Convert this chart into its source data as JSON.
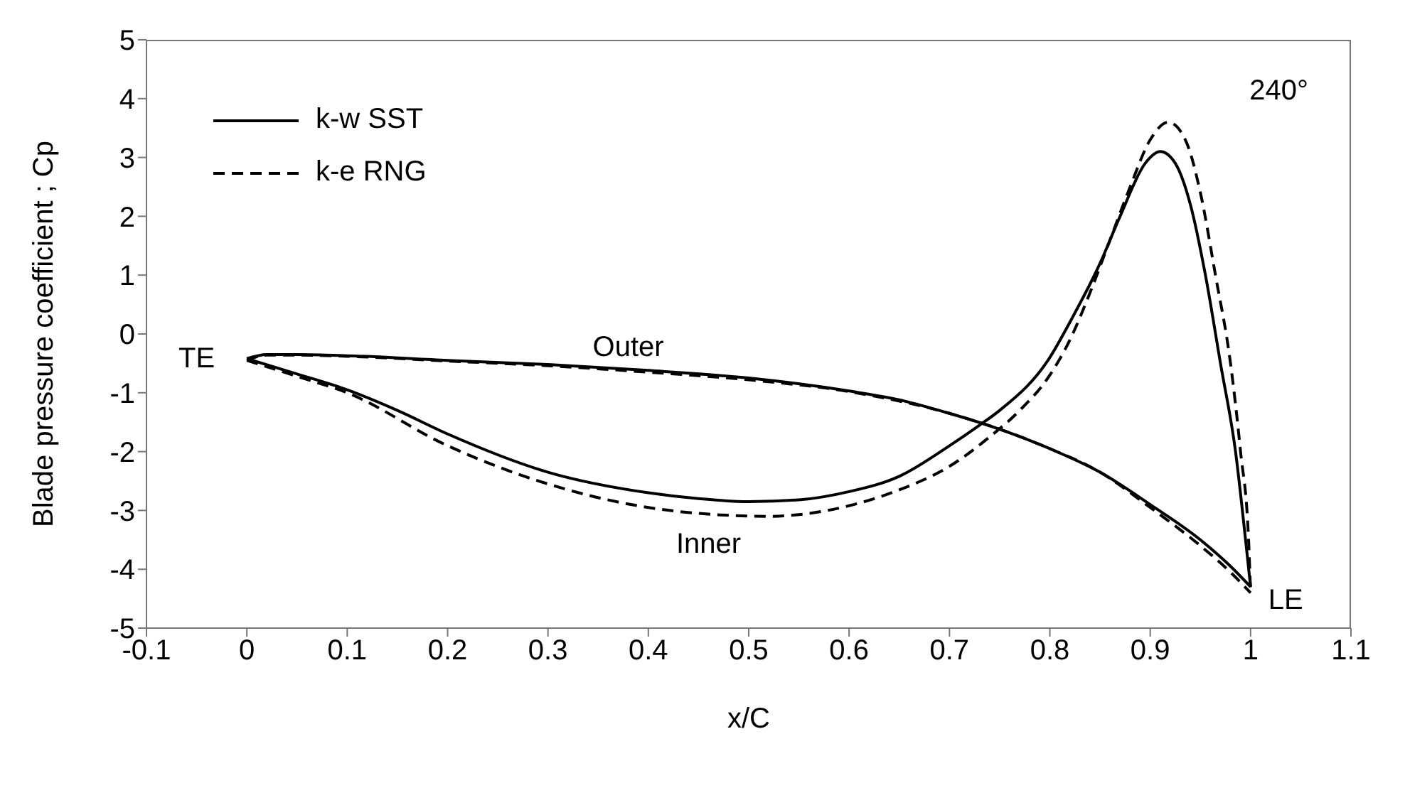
{
  "chart_data": {
    "type": "line",
    "xlabel": "x/C",
    "ylabel": "Blade pressure coefficient ; Cp",
    "xlim": [
      -0.1,
      1.1
    ],
    "ylim": [
      -5,
      5
    ],
    "xticks": [
      -0.1,
      0,
      0.1,
      0.2,
      0.3,
      0.4,
      0.5,
      0.6,
      0.7,
      0.8,
      0.9,
      1,
      1.1
    ],
    "yticks": [
      -5,
      -4,
      -3,
      -2,
      -1,
      0,
      1,
      2,
      3,
      4,
      5
    ],
    "legend": "top left",
    "annotations": [
      "240°",
      "TE",
      "LE",
      "Outer",
      "Inner"
    ],
    "series": [
      {
        "name": "k-w SST",
        "color": "#000000",
        "line_style": "solid",
        "x": [
          0,
          0.02,
          0.05,
          0.1,
          0.2,
          0.3,
          0.4,
          0.5,
          0.6,
          0.65,
          0.7,
          0.75,
          0.8,
          0.85,
          0.9,
          0.95,
          0.98,
          1.0
        ],
        "values": [
          -0.42,
          -0.35,
          -0.35,
          -0.37,
          -0.45,
          -0.52,
          -0.62,
          -0.75,
          -0.97,
          -1.12,
          -1.35,
          -1.62,
          -1.95,
          -2.35,
          -2.9,
          -3.5,
          -3.95,
          -4.3
        ]
      },
      {
        "name": "k-e RNG",
        "color": "#000000",
        "line_style": "dashed",
        "x": [
          0,
          0.02,
          0.05,
          0.1,
          0.2,
          0.3,
          0.4,
          0.5,
          0.6,
          0.7,
          0.8,
          0.85,
          0.9,
          0.95,
          0.98,
          1.0
        ],
        "values": [
          -0.45,
          -0.36,
          -0.36,
          -0.38,
          -0.46,
          -0.54,
          -0.65,
          -0.78,
          -0.98,
          -1.35,
          -1.95,
          -2.35,
          -2.95,
          -3.6,
          -4.05,
          -4.4
        ]
      },
      {
        "color": "#000000",
        "line_style": "solid",
        "x": [
          0,
          0.05,
          0.1,
          0.15,
          0.2,
          0.3,
          0.4,
          0.45,
          0.5,
          0.55,
          0.6,
          0.65,
          0.7,
          0.73,
          0.75,
          0.8,
          0.82,
          0.85,
          0.87,
          0.895,
          0.91,
          0.925,
          0.94,
          0.955,
          0.97,
          0.985,
          0.995,
          1.0
        ],
        "values": [
          -0.42,
          -0.68,
          -0.95,
          -1.3,
          -1.7,
          -2.35,
          -2.7,
          -2.8,
          -2.85,
          -2.82,
          -2.68,
          -2.42,
          -1.9,
          -1.55,
          -1.3,
          -0.4,
          0.2,
          1.2,
          2,
          2.9,
          3.1,
          2.9,
          2.2,
          1,
          -0.5,
          -2,
          -3.5,
          -4.3
        ]
      },
      {
        "color": "#000000",
        "line_style": "dashed",
        "x": [
          0,
          0.05,
          0.1,
          0.2,
          0.3,
          0.4,
          0.45,
          0.52,
          0.55,
          0.6,
          0.65,
          0.7,
          0.74,
          0.77,
          0.8,
          0.82,
          0.84,
          0.86,
          0.88,
          0.9,
          0.918,
          0.935,
          0.95,
          0.965,
          0.98,
          0.99,
          0.998,
          1.0
        ],
        "values": [
          -0.45,
          -0.72,
          -1.0,
          -1.9,
          -2.55,
          -2.95,
          -3.05,
          -3.1,
          -3.07,
          -2.92,
          -2.65,
          -2.25,
          -1.75,
          -1.3,
          -0.7,
          -0.1,
          0.7,
          1.6,
          2.5,
          3.3,
          3.6,
          3.3,
          2.4,
          1,
          -0.5,
          -2,
          -3.5,
          -4.4
        ]
      }
    ]
  }
}
